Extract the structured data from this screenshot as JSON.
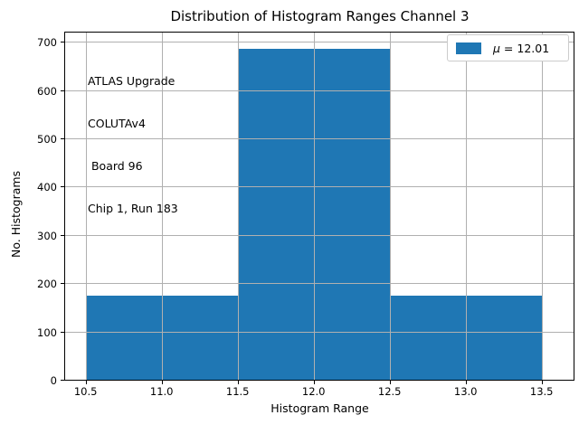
{
  "figure": {
    "title": "Distribution of Histogram Ranges Channel 3"
  },
  "legend": {
    "mu_symbol": "μ",
    "rest": " = 12.01",
    "swatch_color": "#1f77b4"
  },
  "annotation": {
    "lines": [
      "ATLAS Upgrade",
      "COLUTAv4",
      " Board 96",
      "Chip 1, Run 183"
    ]
  },
  "chart_data": {
    "type": "bar",
    "title": "Distribution of Histogram Ranges Channel 3",
    "xlabel": "Histogram Range",
    "ylabel": "No. Histograms",
    "bin_edges": [
      10.5,
      11.5,
      12.5,
      13.5
    ],
    "values": [
      175,
      685,
      175
    ],
    "series": [
      {
        "name": "μ = 12.01",
        "values": [
          175,
          685,
          175
        ]
      }
    ],
    "legend_label": "μ = 12.01",
    "legend_position": "upper right",
    "bar_color": "#1f77b4",
    "grid": true,
    "grid_color": "#b0b0b0",
    "xlim": [
      10.365,
      13.71
    ],
    "ylim": [
      0,
      719
    ],
    "xtick_values": [
      10.5,
      11.0,
      11.5,
      12.0,
      12.5,
      13.0,
      13.5
    ],
    "xtick_labels": [
      "10.5",
      "11.0",
      "11.5",
      "12.0",
      "12.5",
      "13.0",
      "13.5"
    ],
    "ytick_values": [
      0,
      100,
      200,
      300,
      400,
      500,
      600,
      700
    ],
    "ytick_labels": [
      "0",
      "100",
      "200",
      "300",
      "400",
      "500",
      "600",
      "700"
    ]
  }
}
